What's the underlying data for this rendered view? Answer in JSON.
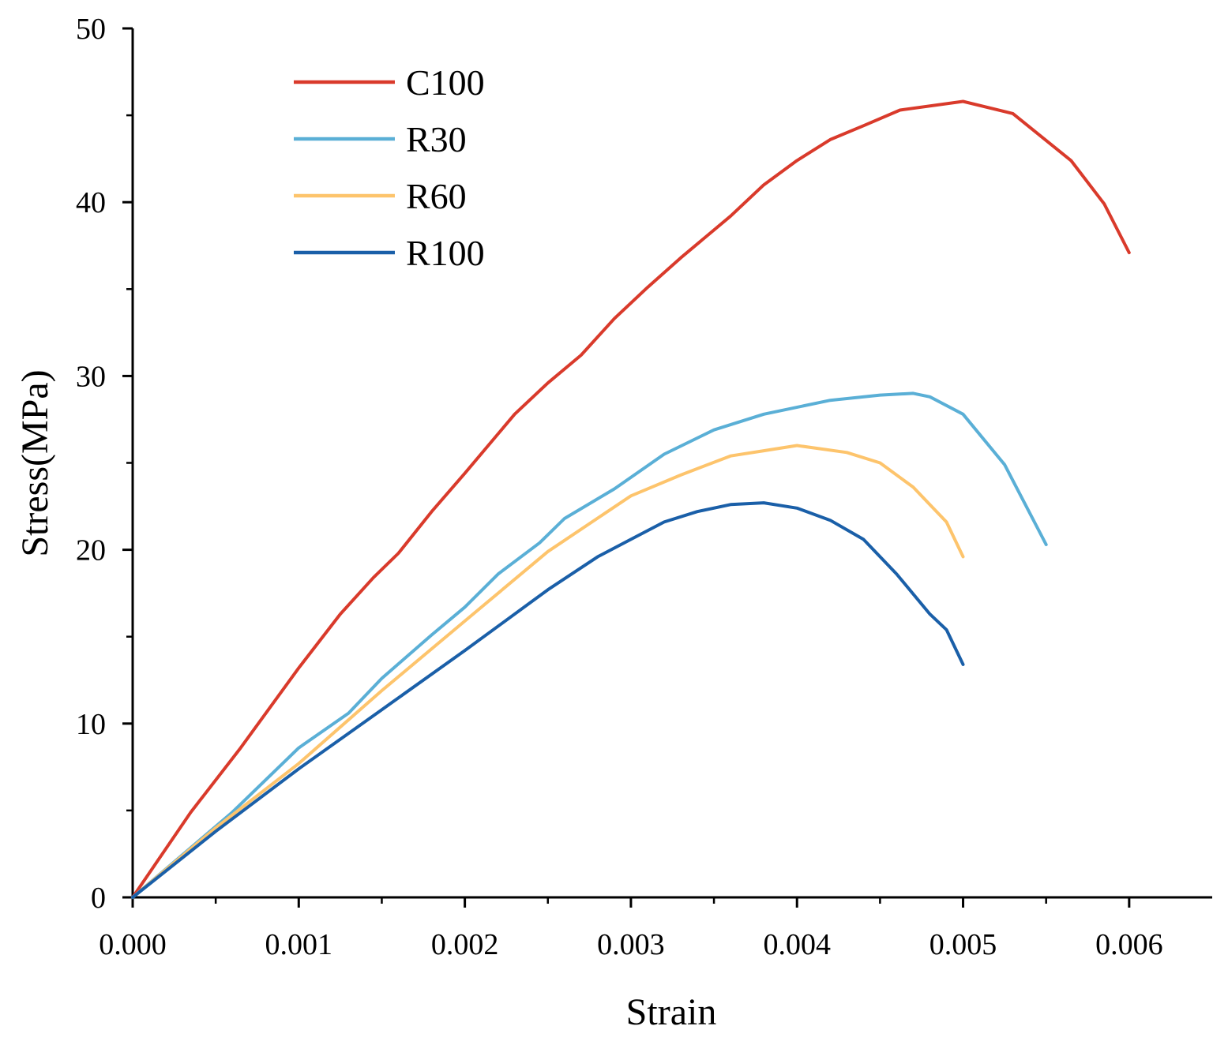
{
  "chart_data": {
    "type": "line",
    "title": "",
    "xlabel": "Strain",
    "ylabel": "Stress(MPa)",
    "xlim": [
      0,
      0.0065
    ],
    "ylim": [
      0,
      50
    ],
    "x_ticks": [
      0.0,
      0.001,
      0.002,
      0.003,
      0.004,
      0.005,
      0.006
    ],
    "x_tick_labels": [
      "0.000",
      "0.001",
      "0.002",
      "0.003",
      "0.004",
      "0.005",
      "0.006"
    ],
    "y_ticks": [
      0,
      10,
      20,
      30,
      40,
      50
    ],
    "y_tick_labels": [
      "0",
      "10",
      "20",
      "30",
      "40",
      "50"
    ],
    "grid": false,
    "legend_position": "top-left",
    "series": [
      {
        "name": "C100",
        "color": "#d93a2b",
        "x": [
          0,
          0.00035,
          0.00065,
          0.001,
          0.00125,
          0.00145,
          0.0016,
          0.0018,
          0.002,
          0.0023,
          0.0025,
          0.0027,
          0.0029,
          0.0031,
          0.0033,
          0.0036,
          0.0038,
          0.004,
          0.0042,
          0.0044,
          0.00462,
          0.005,
          0.0053,
          0.00565,
          0.00585,
          0.006
        ],
        "y": [
          0,
          4.9,
          8.6,
          13.2,
          16.3,
          18.4,
          19.8,
          22.2,
          24.4,
          27.8,
          29.6,
          31.2,
          33.3,
          35.1,
          36.8,
          39.2,
          41.0,
          42.4,
          43.6,
          44.4,
          45.3,
          45.8,
          45.1,
          42.4,
          39.9,
          37.1
        ]
      },
      {
        "name": "R30",
        "color": "#5aafd6",
        "x": [
          0,
          0.0006,
          0.001,
          0.0013,
          0.0015,
          0.0018,
          0.002,
          0.0022,
          0.00245,
          0.0026,
          0.0029,
          0.0032,
          0.0035,
          0.0038,
          0.0042,
          0.0045,
          0.0047,
          0.0048,
          0.005,
          0.00525,
          0.0055
        ],
        "y": [
          0,
          4.9,
          8.6,
          10.6,
          12.6,
          15.1,
          16.7,
          18.6,
          20.4,
          21.8,
          23.5,
          25.5,
          26.9,
          27.8,
          28.6,
          28.9,
          29.0,
          28.8,
          27.8,
          24.9,
          20.3
        ]
      },
      {
        "name": "R60",
        "color": "#fdc46c",
        "x": [
          0,
          0.0005,
          0.001,
          0.0015,
          0.002,
          0.0025,
          0.003,
          0.0033,
          0.0036,
          0.0038,
          0.004,
          0.0043,
          0.0045,
          0.0047,
          0.0049,
          0.005
        ],
        "y": [
          0,
          4.0,
          7.7,
          11.9,
          15.9,
          19.9,
          23.1,
          24.3,
          25.4,
          25.7,
          26.0,
          25.6,
          25.0,
          23.6,
          21.6,
          19.6
        ]
      },
      {
        "name": "R100",
        "color": "#1a5fa8",
        "x": [
          0,
          0.0005,
          0.001,
          0.0015,
          0.002,
          0.0025,
          0.0028,
          0.003,
          0.0032,
          0.0034,
          0.0036,
          0.0038,
          0.004,
          0.0042,
          0.0044,
          0.0046,
          0.0048,
          0.0049,
          0.005
        ],
        "y": [
          0,
          3.8,
          7.4,
          10.8,
          14.2,
          17.7,
          19.6,
          20.6,
          21.6,
          22.2,
          22.6,
          22.7,
          22.4,
          21.7,
          20.6,
          18.6,
          16.3,
          15.4,
          13.4
        ]
      }
    ]
  }
}
